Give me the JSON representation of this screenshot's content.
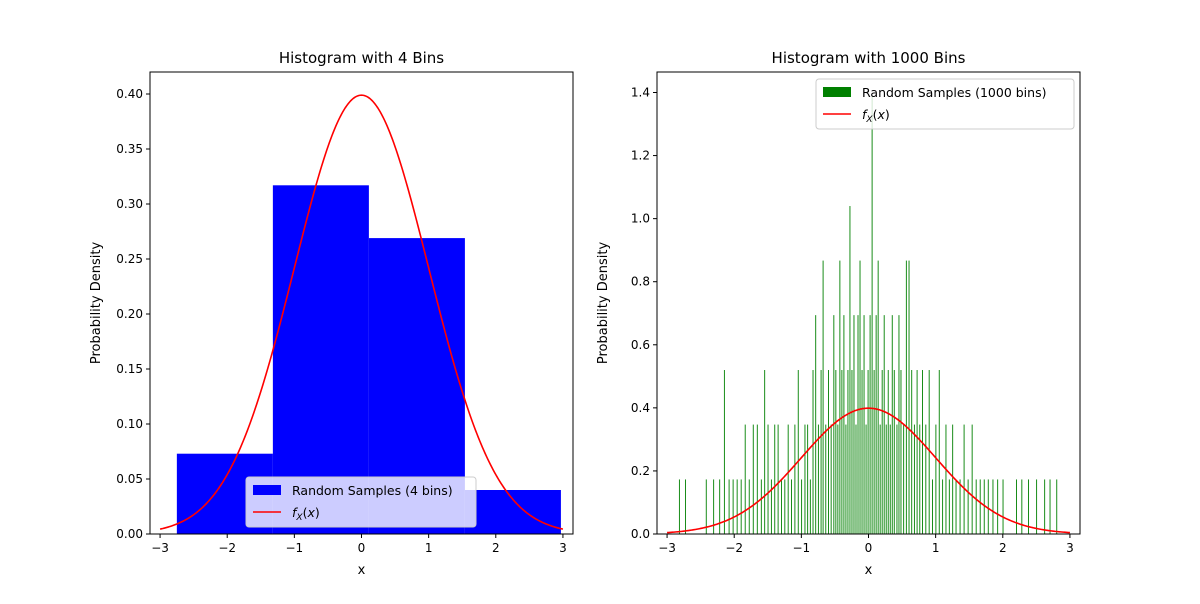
{
  "chart_data": [
    {
      "type": "bar",
      "title": "Histogram with 4 Bins",
      "xlabel": "x",
      "ylabel": "Probability Density",
      "xlim": [
        -3.15,
        3.15
      ],
      "ylim": [
        0,
        0.42
      ],
      "xticks": [
        -3,
        -2,
        -1,
        0,
        1,
        2,
        3
      ],
      "xtick_labels": [
        "−3",
        "−2",
        "−1",
        "0",
        "1",
        "2",
        "3"
      ],
      "yticks": [
        0,
        0.05,
        0.1,
        0.15,
        0.2,
        0.25,
        0.3,
        0.35,
        0.4
      ],
      "ytick_labels": [
        "0.00",
        "0.05",
        "0.10",
        "0.15",
        "0.20",
        "0.25",
        "0.30",
        "0.35",
        "0.40"
      ],
      "bins": [
        {
          "x0": -2.75,
          "x1": -1.32,
          "density": 0.073
        },
        {
          "x0": -1.32,
          "x1": 0.11,
          "density": 0.317
        },
        {
          "x0": 0.11,
          "x1": 1.54,
          "density": 0.269
        },
        {
          "x0": 1.54,
          "x1": 2.97,
          "density": 0.04
        }
      ],
      "bar_color": "#0000ff",
      "pdf": {
        "name": "fX(x)",
        "x_range": [
          -3,
          3
        ],
        "color": "#ff0000"
      },
      "legend": {
        "placement": "lower-center",
        "entries": [
          {
            "label": "Random Samples (4 bins)",
            "kind": "patch",
            "color": "#0000ff"
          },
          {
            "label": "fX(x)",
            "kind": "line",
            "color": "#ff0000"
          }
        ]
      },
      "grid": false
    },
    {
      "type": "bar",
      "title": "Histogram with 1000 Bins",
      "xlabel": "x",
      "ylabel": "Probability Density",
      "xlim": [
        -3.15,
        3.15
      ],
      "ylim": [
        0,
        1.465
      ],
      "xticks": [
        -3,
        -2,
        -1,
        0,
        1,
        2,
        3
      ],
      "xtick_labels": [
        "−3",
        "−2",
        "−1",
        "0",
        "1",
        "2",
        "3"
      ],
      "yticks": [
        0,
        0.2,
        0.4,
        0.6,
        0.8,
        1.0,
        1.2,
        1.4
      ],
      "ytick_labels": [
        "0.0",
        "0.2",
        "0.4",
        "0.6",
        "0.8",
        "1.0",
        "1.2",
        "1.4"
      ],
      "bar_color": "#008000",
      "bars": [
        {
          "x": -2.82,
          "h": 0.173
        },
        {
          "x": -2.73,
          "h": 0.173
        },
        {
          "x": -2.42,
          "h": 0.173
        },
        {
          "x": -2.31,
          "h": 0.173
        },
        {
          "x": -2.22,
          "h": 0.173
        },
        {
          "x": -2.15,
          "h": 0.52
        },
        {
          "x": -2.08,
          "h": 0.173
        },
        {
          "x": -2.02,
          "h": 0.173
        },
        {
          "x": -1.96,
          "h": 0.173
        },
        {
          "x": -1.9,
          "h": 0.173
        },
        {
          "x": -1.84,
          "h": 0.347
        },
        {
          "x": -1.78,
          "h": 0.173
        },
        {
          "x": -1.72,
          "h": 0.347
        },
        {
          "x": -1.66,
          "h": 0.347
        },
        {
          "x": -1.6,
          "h": 0.173
        },
        {
          "x": -1.55,
          "h": 0.52
        },
        {
          "x": -1.5,
          "h": 0.347
        },
        {
          "x": -1.45,
          "h": 0.173
        },
        {
          "x": -1.4,
          "h": 0.347
        },
        {
          "x": -1.35,
          "h": 0.347
        },
        {
          "x": -1.3,
          "h": 0.173
        },
        {
          "x": -1.25,
          "h": 0.173
        },
        {
          "x": -1.2,
          "h": 0.347
        },
        {
          "x": -1.15,
          "h": 0.173
        },
        {
          "x": -1.1,
          "h": 0.347
        },
        {
          "x": -1.05,
          "h": 0.52
        },
        {
          "x": -1.0,
          "h": 0.173
        },
        {
          "x": -0.95,
          "h": 0.347
        },
        {
          "x": -0.91,
          "h": 0.347
        },
        {
          "x": -0.87,
          "h": 0.173
        },
        {
          "x": -0.83,
          "h": 0.52
        },
        {
          "x": -0.79,
          "h": 0.694
        },
        {
          "x": -0.75,
          "h": 0.347
        },
        {
          "x": -0.71,
          "h": 0.52
        },
        {
          "x": -0.68,
          "h": 0.867
        },
        {
          "x": -0.64,
          "h": 0.347
        },
        {
          "x": -0.6,
          "h": 0.52
        },
        {
          "x": -0.56,
          "h": 0.347
        },
        {
          "x": -0.52,
          "h": 0.694
        },
        {
          "x": -0.49,
          "h": 0.52
        },
        {
          "x": -0.46,
          "h": 0.347
        },
        {
          "x": -0.43,
          "h": 0.867
        },
        {
          "x": -0.4,
          "h": 0.52
        },
        {
          "x": -0.37,
          "h": 0.694
        },
        {
          "x": -0.34,
          "h": 0.347
        },
        {
          "x": -0.31,
          "h": 0.52
        },
        {
          "x": -0.28,
          "h": 1.04
        },
        {
          "x": -0.25,
          "h": 0.52
        },
        {
          "x": -0.22,
          "h": 0.694
        },
        {
          "x": -0.19,
          "h": 0.347
        },
        {
          "x": -0.16,
          "h": 0.694
        },
        {
          "x": -0.13,
          "h": 0.867
        },
        {
          "x": -0.1,
          "h": 0.52
        },
        {
          "x": -0.07,
          "h": 0.694
        },
        {
          "x": -0.04,
          "h": 0.347
        },
        {
          "x": -0.01,
          "h": 0.52
        },
        {
          "x": 0.02,
          "h": 0.694
        },
        {
          "x": 0.05,
          "h": 1.387
        },
        {
          "x": 0.08,
          "h": 0.52
        },
        {
          "x": 0.11,
          "h": 0.694
        },
        {
          "x": 0.14,
          "h": 0.867
        },
        {
          "x": 0.17,
          "h": 0.347
        },
        {
          "x": 0.2,
          "h": 0.52
        },
        {
          "x": 0.23,
          "h": 0.694
        },
        {
          "x": 0.26,
          "h": 0.347
        },
        {
          "x": 0.29,
          "h": 0.52
        },
        {
          "x": 0.32,
          "h": 0.347
        },
        {
          "x": 0.35,
          "h": 0.694
        },
        {
          "x": 0.38,
          "h": 0.52
        },
        {
          "x": 0.42,
          "h": 0.347
        },
        {
          "x": 0.45,
          "h": 0.694
        },
        {
          "x": 0.48,
          "h": 0.52
        },
        {
          "x": 0.52,
          "h": 0.347
        },
        {
          "x": 0.56,
          "h": 0.867
        },
        {
          "x": 0.6,
          "h": 0.867
        },
        {
          "x": 0.64,
          "h": 0.52
        },
        {
          "x": 0.68,
          "h": 0.347
        },
        {
          "x": 0.72,
          "h": 0.52
        },
        {
          "x": 0.76,
          "h": 0.347
        },
        {
          "x": 0.8,
          "h": 0.52
        },
        {
          "x": 0.85,
          "h": 0.347
        },
        {
          "x": 0.9,
          "h": 0.52
        },
        {
          "x": 0.95,
          "h": 0.173
        },
        {
          "x": 1.0,
          "h": 0.347
        },
        {
          "x": 1.05,
          "h": 0.52
        },
        {
          "x": 1.1,
          "h": 0.173
        },
        {
          "x": 1.15,
          "h": 0.347
        },
        {
          "x": 1.2,
          "h": 0.173
        },
        {
          "x": 1.25,
          "h": 0.347
        },
        {
          "x": 1.3,
          "h": 0.173
        },
        {
          "x": 1.36,
          "h": 0.173
        },
        {
          "x": 1.42,
          "h": 0.347
        },
        {
          "x": 1.48,
          "h": 0.173
        },
        {
          "x": 1.54,
          "h": 0.347
        },
        {
          "x": 1.6,
          "h": 0.173
        },
        {
          "x": 1.66,
          "h": 0.173
        },
        {
          "x": 1.72,
          "h": 0.173
        },
        {
          "x": 1.78,
          "h": 0.173
        },
        {
          "x": 1.85,
          "h": 0.173
        },
        {
          "x": 1.92,
          "h": 0.173
        },
        {
          "x": 2.0,
          "h": 0.173
        },
        {
          "x": 2.2,
          "h": 0.173
        },
        {
          "x": 2.28,
          "h": 0.173
        },
        {
          "x": 2.38,
          "h": 0.173
        },
        {
          "x": 2.5,
          "h": 0.173
        },
        {
          "x": 2.62,
          "h": 0.173
        },
        {
          "x": 2.7,
          "h": 0.173
        },
        {
          "x": 2.8,
          "h": 0.173
        }
      ],
      "pdf": {
        "name": "fX(x)",
        "x_range": [
          -3,
          3
        ],
        "color": "#ff0000"
      },
      "legend": {
        "placement": "upper-right",
        "entries": [
          {
            "label": "Random Samples (1000 bins)",
            "kind": "patch",
            "color": "#008000"
          },
          {
            "label": "fX(x)",
            "kind": "line",
            "color": "#ff0000"
          }
        ]
      },
      "grid": false
    }
  ]
}
